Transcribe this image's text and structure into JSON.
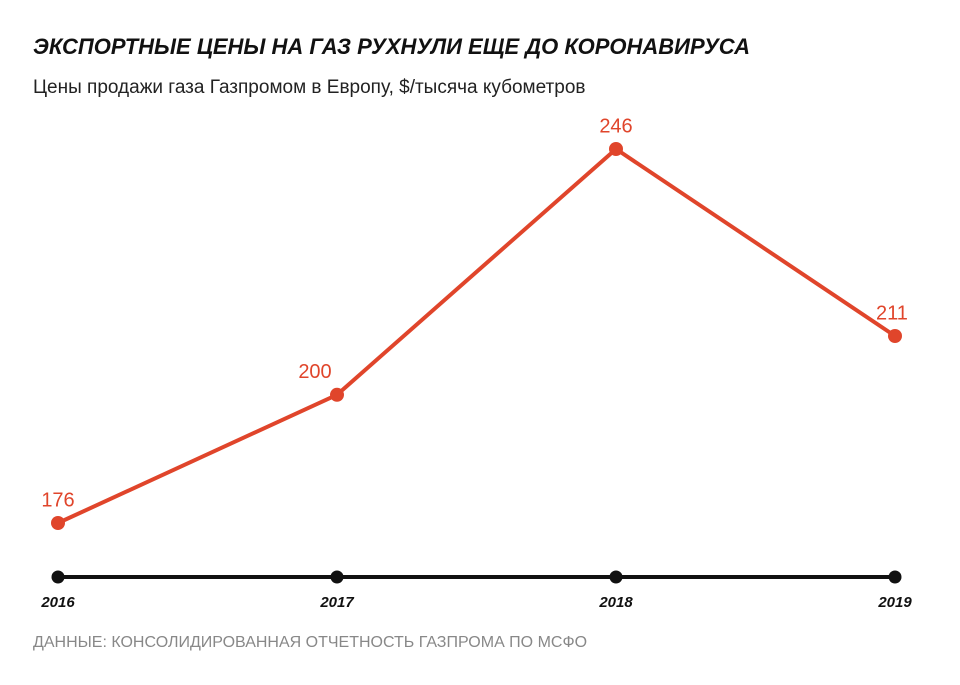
{
  "chart_data": {
    "type": "line",
    "title": "ЭКСПОРТНЫЕ ЦЕНЫ НА ГАЗ РУХНУЛИ ЕЩЕ ДО КОРОНАВИРУСА",
    "subtitle": "Цены продажи газа Газпромом в Европу, $/тысяча кубометров",
    "source": "ДАННЫЕ: КОНСОЛИДИРОВАННАЯ ОТЧЕТНОСТЬ ГАЗПРОМА ПО МСФО",
    "categories": [
      "2016",
      "2017",
      "2018",
      "2019"
    ],
    "series": [
      {
        "name": "Цены продажи газа",
        "color": "#e0452b",
        "values": [
          176,
          200,
          246,
          211
        ]
      }
    ]
  }
}
